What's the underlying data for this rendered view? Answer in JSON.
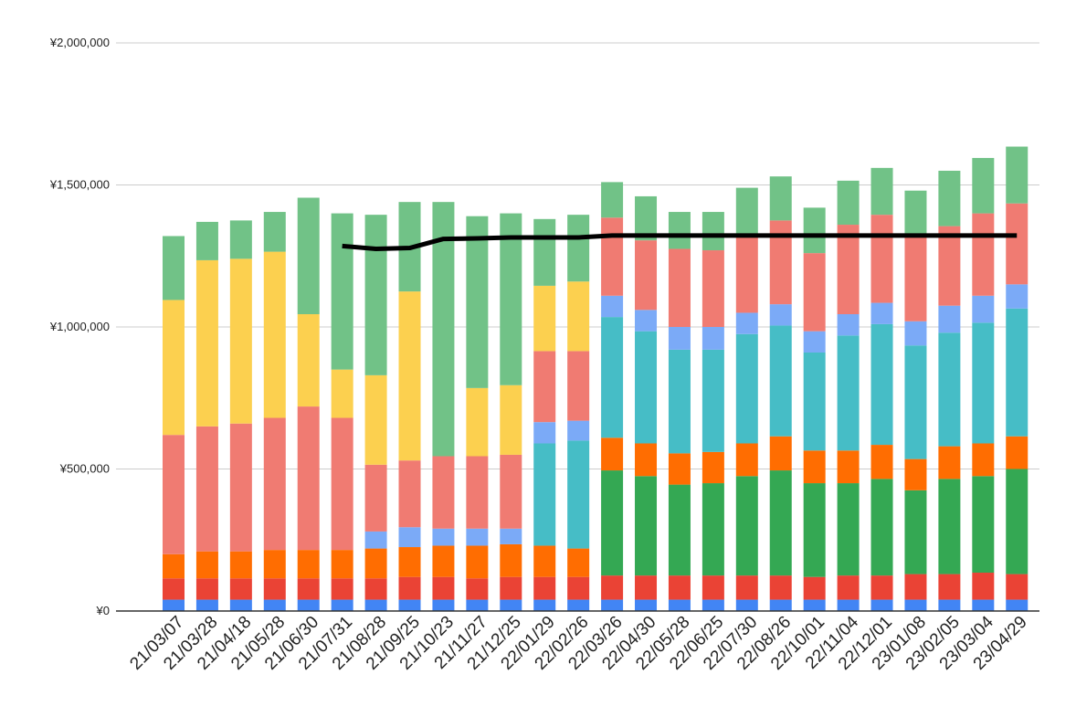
{
  "chart_data": {
    "type": "bar",
    "stacked": true,
    "title": "",
    "xlabel": "",
    "ylabel": "",
    "ylim": [
      0,
      2000000
    ],
    "yticks": [
      0,
      500000,
      1000000,
      1500000,
      2000000
    ],
    "ytick_labels": [
      "¥0",
      "¥500,000",
      "¥1,000,000",
      "¥1,500,000",
      "¥2,000,000"
    ],
    "grid": true,
    "legend": "none",
    "categories": [
      "21/03/07",
      "21/03/28",
      "21/04/18",
      "21/05/28",
      "21/06/30",
      "21/07/31",
      "21/08/28",
      "21/09/25",
      "21/10/23",
      "21/11/27",
      "21/12/25",
      "22/01/29",
      "22/02/26",
      "22/03/26",
      "22/04/30",
      "22/05/28",
      "22/06/25",
      "22/07/30",
      "22/08/26",
      "22/10/01",
      "22/11/04",
      "22/12/01",
      "23/01/08",
      "23/02/05",
      "23/03/04",
      "23/04/29"
    ],
    "series": [
      {
        "color": "#4285f4",
        "values": [
          40000,
          40000,
          40000,
          40000,
          40000,
          40000,
          40000,
          40000,
          40000,
          40000,
          40000,
          40000,
          40000,
          40000,
          40000,
          40000,
          40000,
          40000,
          40000,
          40000,
          40000,
          40000,
          40000,
          40000,
          40000,
          40000
        ]
      },
      {
        "color": "#ea4335",
        "values": [
          75000,
          75000,
          75000,
          75000,
          75000,
          75000,
          75000,
          80000,
          80000,
          75000,
          80000,
          80000,
          80000,
          85000,
          85000,
          85000,
          85000,
          85000,
          85000,
          80000,
          85000,
          85000,
          90000,
          90000,
          95000,
          90000
        ]
      },
      {
        "color": "#ff6d01",
        "values": [
          85000,
          95000,
          95000,
          100000,
          100000,
          100000,
          105000,
          105000,
          110000,
          115000,
          115000,
          110000,
          100000,
          0,
          0,
          0,
          0,
          0,
          0,
          0,
          0,
          0,
          0,
          0,
          0,
          0
        ]
      },
      {
        "color": "#34a853",
        "values": [
          0,
          0,
          0,
          0,
          0,
          0,
          0,
          0,
          0,
          0,
          0,
          0,
          0,
          370000,
          350000,
          320000,
          325000,
          350000,
          370000,
          330000,
          325000,
          340000,
          295000,
          335000,
          340000,
          370000
        ]
      },
      {
        "color": "#ff6d01",
        "values": [
          0,
          0,
          0,
          0,
          0,
          0,
          0,
          0,
          0,
          0,
          0,
          0,
          0,
          115000,
          115000,
          110000,
          110000,
          115000,
          120000,
          115000,
          115000,
          120000,
          110000,
          115000,
          115000,
          115000
        ]
      },
      {
        "color": "#46bdc6",
        "values": [
          0,
          0,
          0,
          0,
          0,
          0,
          0,
          0,
          0,
          0,
          0,
          360000,
          380000,
          425000,
          395000,
          365000,
          360000,
          385000,
          390000,
          345000,
          405000,
          425000,
          400000,
          400000,
          425000,
          450000
        ]
      },
      {
        "color": "#7baaf7",
        "values": [
          0,
          0,
          0,
          0,
          0,
          0,
          60000,
          70000,
          60000,
          60000,
          55000,
          75000,
          70000,
          75000,
          75000,
          80000,
          80000,
          75000,
          75000,
          75000,
          75000,
          75000,
          85000,
          95000,
          95000,
          85000
        ]
      },
      {
        "color": "#f07b72",
        "values": [
          420000,
          440000,
          450000,
          465000,
          505000,
          465000,
          235000,
          235000,
          255000,
          255000,
          260000,
          250000,
          245000,
          275000,
          245000,
          275000,
          270000,
          265000,
          295000,
          275000,
          315000,
          310000,
          300000,
          280000,
          290000,
          285000
        ]
      },
      {
        "color": "#fcd04f",
        "values": [
          475000,
          585000,
          580000,
          585000,
          325000,
          170000,
          315000,
          595000,
          0,
          240000,
          245000,
          230000,
          245000,
          0,
          0,
          0,
          0,
          0,
          0,
          0,
          0,
          0,
          0,
          0,
          0,
          0
        ]
      },
      {
        "color": "#71c287",
        "values": [
          225000,
          135000,
          135000,
          140000,
          410000,
          550000,
          565000,
          315000,
          895000,
          605000,
          605000,
          235000,
          235000,
          125000,
          155000,
          130000,
          135000,
          175000,
          155000,
          160000,
          155000,
          165000,
          160000,
          195000,
          195000,
          200000
        ]
      }
    ],
    "line": {
      "color": "#000000",
      "values": [
        null,
        null,
        null,
        null,
        null,
        1285000,
        1275000,
        1278000,
        1310000,
        1312000,
        1315000,
        1315000,
        1315000,
        1322000,
        1322000,
        1322000,
        1322000,
        1322000,
        1322000,
        1322000,
        1322000,
        1322000,
        1322000,
        1322000,
        1322000,
        1322000
      ]
    }
  }
}
